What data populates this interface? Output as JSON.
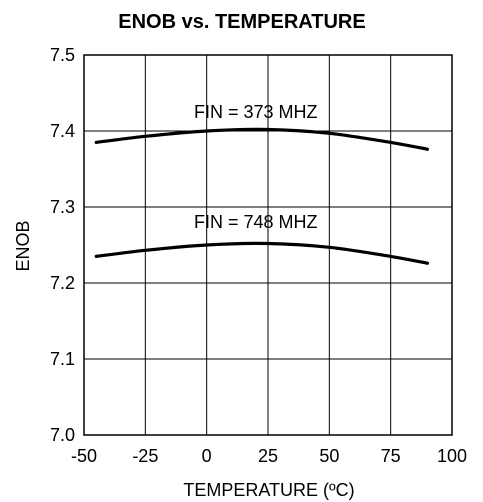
{
  "chart_data": {
    "type": "line",
    "title": "ENOB vs. TEMPERATURE",
    "xlabel": "TEMPERATURE (ºC)",
    "ylabel": "ENOB",
    "xlim": [
      -50,
      100
    ],
    "ylim": [
      7.0,
      7.5
    ],
    "xticks": [
      -50,
      -25,
      0,
      25,
      50,
      75,
      100
    ],
    "xtick_labels": [
      "-50",
      "-25",
      "0",
      "25",
      "50",
      "75",
      "100"
    ],
    "yticks": [
      7.0,
      7.1,
      7.2,
      7.3,
      7.4,
      7.5
    ],
    "ytick_labels": [
      "7.0",
      "7.1",
      "7.2",
      "7.3",
      "7.4",
      "7.5"
    ],
    "grid": true,
    "legend": "none",
    "series": [
      {
        "name": "FIN = 373 MHZ",
        "x": [
          -45,
          -25,
          0,
          25,
          50,
          75,
          90
        ],
        "y": [
          7.385,
          7.393,
          7.4,
          7.402,
          7.397,
          7.385,
          7.376
        ]
      },
      {
        "name": "FIN = 748 MHZ",
        "x": [
          -45,
          -25,
          0,
          25,
          50,
          75,
          90
        ],
        "y": [
          7.235,
          7.243,
          7.25,
          7.252,
          7.247,
          7.235,
          7.226
        ]
      }
    ],
    "annotations": [
      {
        "text": "FIN = 373 MHZ",
        "x": 20,
        "y": 7.425
      },
      {
        "text": "FIN = 748 MHZ",
        "x": 20,
        "y": 7.28
      }
    ],
    "line_color": "#000000"
  }
}
